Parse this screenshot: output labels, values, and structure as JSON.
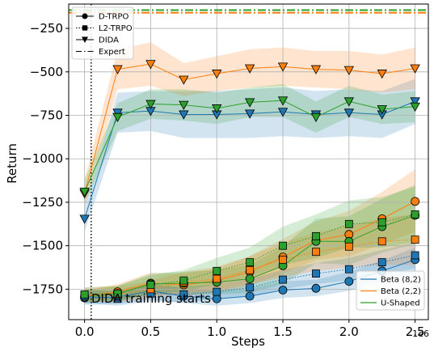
{
  "chart_data": {
    "type": "line",
    "xlabel": "Steps",
    "ylabel": "Return",
    "x_scale_label": "1e6",
    "xlim": [
      -0.12,
      2.6
    ],
    "ylim": [
      -1925,
      -110
    ],
    "x_ticks": [
      0.0,
      0.5,
      1.0,
      1.5,
      2.0,
      2.5
    ],
    "x_tick_labels": [
      "0.0",
      "0.5",
      "1.0",
      "1.5",
      "2.0",
      "2.5"
    ],
    "y_ticks": [
      -1750,
      -1500,
      -1250,
      -1000,
      -750,
      -500,
      -250
    ],
    "y_tick_labels": [
      "−1750",
      "−1500",
      "−1250",
      "−1000",
      "−750",
      "−500",
      "−250"
    ],
    "grid": true,
    "x": [
      0.0,
      0.25,
      0.5,
      0.75,
      1.0,
      1.25,
      1.5,
      1.75,
      2.0,
      2.25,
      2.5
    ],
    "method_legend": {
      "placement": "top-left",
      "entries": [
        {
          "label": "D-TRPO",
          "marker": "circle",
          "dash": "solid"
        },
        {
          "label": "L2-TRPO",
          "marker": "square",
          "dash": "dotted"
        },
        {
          "label": "DIDA",
          "marker": "triangle-down",
          "dash": "solid"
        },
        {
          "label": "Expert",
          "marker": "none",
          "dash": "dashdot"
        }
      ]
    },
    "distribution_legend": {
      "placement": "bottom-right",
      "entries": [
        {
          "label": "Beta (8,2)",
          "color": "#1f77b4"
        },
        {
          "label": "Beta (2,2)",
          "color": "#ff7f0e"
        },
        {
          "label": "U-Shaped",
          "color": "#2ca02c"
        }
      ]
    },
    "colors": {
      "beta82": "#1f77b4",
      "beta22": "#ff7f0e",
      "ushaped": "#2ca02c"
    },
    "series": [
      {
        "method": "D-TRPO",
        "group": "beta82",
        "marker": "circle",
        "dash": "solid",
        "values": [
          -1800,
          -1795,
          -1760,
          -1790,
          -1805,
          -1790,
          -1755,
          -1745,
          -1705,
          -1645,
          -1580
        ],
        "lower": [
          -1840,
          -1835,
          -1810,
          -1830,
          -1845,
          -1830,
          -1800,
          -1790,
          -1760,
          -1710,
          -1650
        ],
        "upper": [
          -1760,
          -1755,
          -1715,
          -1745,
          -1760,
          -1745,
          -1705,
          -1695,
          -1650,
          -1585,
          -1510
        ]
      },
      {
        "method": "D-TRPO",
        "group": "beta22",
        "marker": "circle",
        "dash": "solid",
        "values": [
          -1790,
          -1765,
          -1715,
          -1725,
          -1700,
          -1650,
          -1565,
          -1470,
          -1435,
          -1345,
          -1245
        ],
        "lower": [
          -1825,
          -1810,
          -1775,
          -1790,
          -1770,
          -1730,
          -1660,
          -1580,
          -1560,
          -1490,
          -1420
        ],
        "upper": [
          -1755,
          -1720,
          -1655,
          -1660,
          -1630,
          -1560,
          -1460,
          -1360,
          -1300,
          -1190,
          -1060
        ]
      },
      {
        "method": "D-TRPO",
        "group": "ushaped",
        "marker": "circle",
        "dash": "solid",
        "values": [
          -1795,
          -1775,
          -1720,
          -1715,
          -1710,
          -1690,
          -1615,
          -1475,
          -1475,
          -1390,
          -1325
        ],
        "lower": [
          -1830,
          -1820,
          -1780,
          -1780,
          -1780,
          -1770,
          -1720,
          -1600,
          -1610,
          -1540,
          -1490
        ],
        "upper": [
          -1760,
          -1730,
          -1660,
          -1650,
          -1640,
          -1610,
          -1505,
          -1345,
          -1330,
          -1230,
          -1150
        ]
      },
      {
        "method": "L2-TRPO",
        "group": "beta82",
        "marker": "square",
        "dash": "dotted",
        "values": [
          -1790,
          -1805,
          -1775,
          -1780,
          -1765,
          -1740,
          -1695,
          -1660,
          -1635,
          -1595,
          -1555
        ],
        "lower": [
          -1830,
          -1845,
          -1820,
          -1825,
          -1810,
          -1790,
          -1750,
          -1720,
          -1700,
          -1665,
          -1630
        ],
        "upper": [
          -1750,
          -1765,
          -1730,
          -1735,
          -1720,
          -1690,
          -1640,
          -1600,
          -1570,
          -1525,
          -1480
        ]
      },
      {
        "method": "L2-TRPO",
        "group": "beta22",
        "marker": "square",
        "dash": "dotted",
        "values": [
          -1780,
          -1780,
          -1750,
          -1710,
          -1690,
          -1640,
          -1580,
          -1535,
          -1505,
          -1475,
          -1465
        ],
        "lower": [
          -1820,
          -1825,
          -1800,
          -1770,
          -1760,
          -1720,
          -1680,
          -1645,
          -1625,
          -1610,
          -1610
        ],
        "upper": [
          -1740,
          -1735,
          -1700,
          -1650,
          -1620,
          -1560,
          -1480,
          -1425,
          -1385,
          -1340,
          -1320
        ]
      },
      {
        "method": "L2-TRPO",
        "group": "ushaped",
        "marker": "square",
        "dash": "dotted",
        "values": [
          -1780,
          -1775,
          -1725,
          -1700,
          -1645,
          -1595,
          -1500,
          -1445,
          -1375,
          -1365,
          -1320
        ],
        "lower": [
          -1820,
          -1820,
          -1780,
          -1760,
          -1720,
          -1680,
          -1610,
          -1570,
          -1510,
          -1510,
          -1480
        ],
        "upper": [
          -1740,
          -1730,
          -1670,
          -1640,
          -1570,
          -1510,
          -1390,
          -1320,
          -1240,
          -1220,
          -1160
        ]
      },
      {
        "method": "DIDA",
        "group": "beta82",
        "marker": "triangle-down",
        "dash": "solid",
        "values": [
          -1345,
          -735,
          -725,
          -745,
          -745,
          -740,
          -730,
          -745,
          -735,
          -745,
          -670
        ],
        "lower": [
          -1420,
          -850,
          -840,
          -880,
          -880,
          -880,
          -870,
          -880,
          -870,
          -880,
          -800
        ],
        "upper": [
          -1270,
          -620,
          -610,
          -610,
          -610,
          -600,
          -590,
          -610,
          -600,
          -610,
          -540
        ]
      },
      {
        "method": "DIDA",
        "group": "beta22",
        "marker": "triangle-down",
        "dash": "solid",
        "values": [
          -1200,
          -485,
          -455,
          -545,
          -510,
          -480,
          -470,
          -485,
          -490,
          -510,
          -480
        ],
        "lower": [
          -1280,
          -600,
          -580,
          -640,
          -610,
          -590,
          -580,
          -590,
          -600,
          -620,
          -600
        ],
        "upper": [
          -1120,
          -370,
          -330,
          -450,
          -410,
          -370,
          -360,
          -380,
          -380,
          -400,
          -360
        ]
      },
      {
        "method": "DIDA",
        "group": "ushaped",
        "marker": "triangle-down",
        "dash": "solid",
        "values": [
          -1190,
          -760,
          -685,
          -690,
          -710,
          -675,
          -665,
          -760,
          -670,
          -715,
          -700
        ],
        "lower": [
          -1260,
          -840,
          -770,
          -780,
          -800,
          -760,
          -760,
          -850,
          -760,
          -800,
          -790
        ],
        "upper": [
          -1120,
          -680,
          -600,
          -600,
          -620,
          -590,
          -570,
          -670,
          -580,
          -630,
          -610
        ]
      }
    ],
    "expert_lines": [
      {
        "group": "beta82",
        "value": -145
      },
      {
        "group": "beta22",
        "value": -160
      },
      {
        "group": "ushaped",
        "value": -145
      }
    ],
    "vline": {
      "x": 0.05,
      "style": "dotted"
    },
    "annotation": "DIDA training starts"
  }
}
